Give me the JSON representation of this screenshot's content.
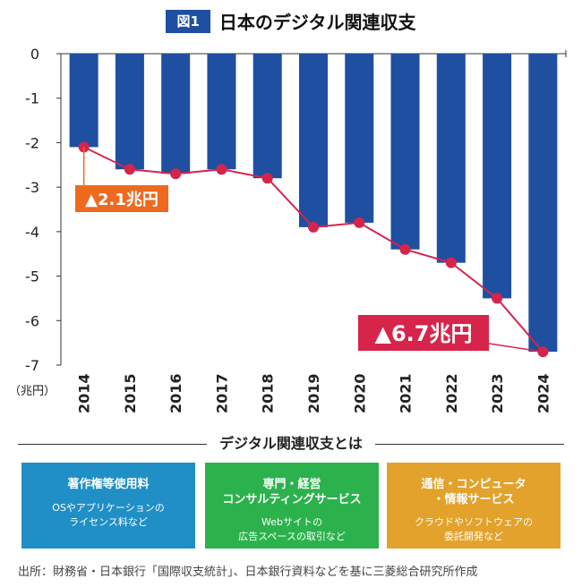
{
  "figure": {
    "badge": "図1",
    "title": "日本のデジタル関連収支"
  },
  "chart_data": {
    "type": "bar",
    "categories": [
      "2014",
      "2015",
      "2016",
      "2017",
      "2018",
      "2019",
      "2020",
      "2021",
      "2022",
      "2023",
      "2024"
    ],
    "series": [
      {
        "values": [
          -2.1,
          -2.6,
          -2.7,
          -2.6,
          -2.8,
          -3.9,
          -3.8,
          -4.4,
          -4.7,
          -5.5,
          -6.7
        ]
      }
    ],
    "line_values": [
      -2.1,
      -2.6,
      -2.7,
      -2.6,
      -2.8,
      -3.9,
      -3.8,
      -4.4,
      -4.7,
      -5.5,
      -6.7
    ],
    "yticks": [
      "0",
      "-1",
      "-2",
      "-3",
      "-4",
      "-5",
      "-6",
      "-7"
    ],
    "ylim": [
      -7,
      0
    ],
    "ylabel": "（兆円）",
    "bar_color": "#1f4fa0",
    "line_color": "#d6244b",
    "grid": false,
    "callouts": [
      {
        "text": "▲2.1兆円",
        "color": "#ee6a1f"
      },
      {
        "text": "▲6.7兆円",
        "color": "#d6244b"
      }
    ]
  },
  "definition": {
    "heading": "デジタル関連収支とは",
    "boxes": [
      {
        "title": "著作権等使用料",
        "desc": "OSやアプリケーションの\nライセンス料など",
        "color": "#1f8fc6"
      },
      {
        "title": "専門・経営\nコンサルティングサービス",
        "desc": "Webサイトの\n広告スペースの取引など",
        "color": "#2bb24c"
      },
      {
        "title": "通信・コンピュータ\n・情報サービス",
        "desc": "クラウドやソフトウェアの\n委託開発など",
        "color": "#e2a22b"
      }
    ]
  },
  "source": "出所：財務省・日本銀行「国際収支統計」、日本銀行資料などを基に三菱総合研究所作成"
}
